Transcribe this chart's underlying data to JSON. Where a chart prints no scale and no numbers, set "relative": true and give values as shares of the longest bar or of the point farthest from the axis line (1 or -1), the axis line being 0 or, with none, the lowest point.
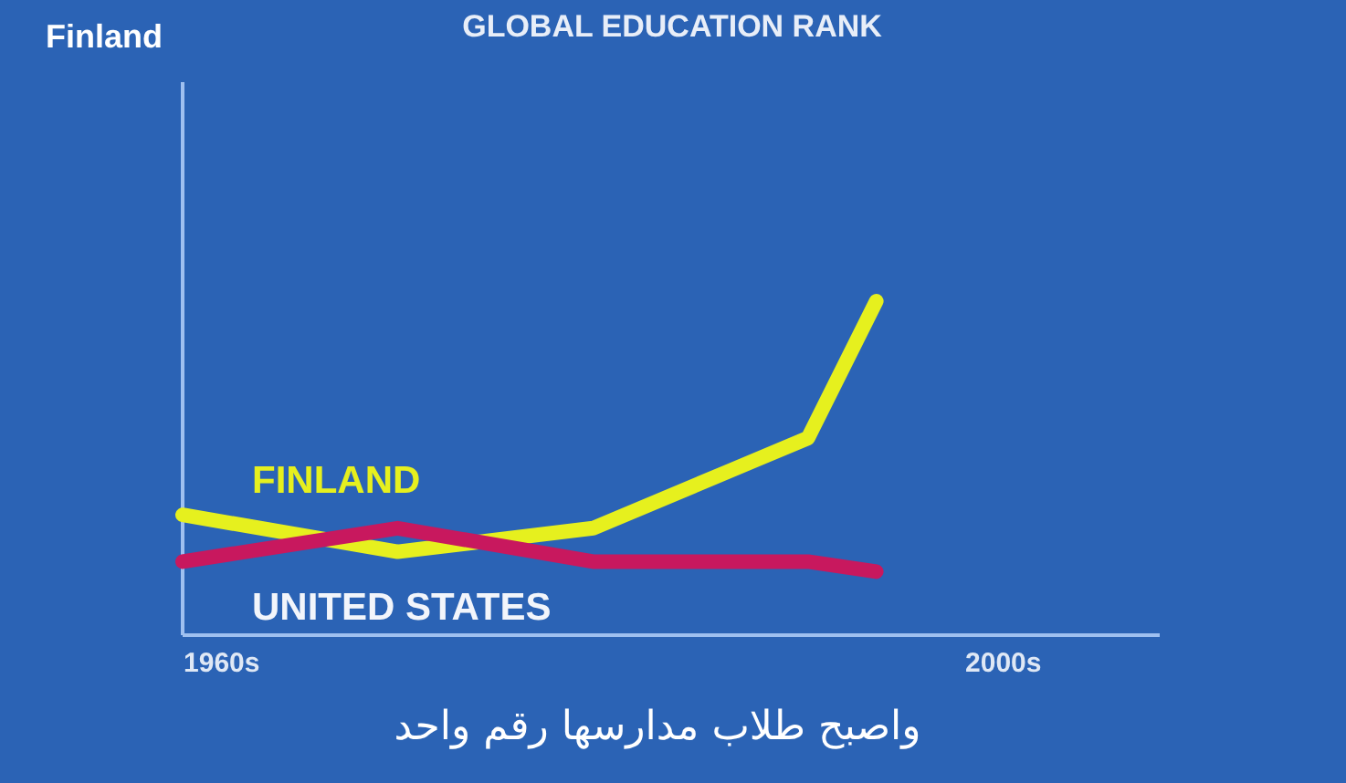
{
  "chart_data": {
    "type": "line",
    "title": "GLOBAL EDUCATION RANK",
    "relative": true,
    "x": [
      1958,
      1969,
      1979,
      1990,
      1993.5
    ],
    "xlim": [
      1958,
      2008
    ],
    "xticks": [
      {
        "value": 1960,
        "label": "1960s"
      },
      {
        "value": 2000,
        "label": "2000s"
      }
    ],
    "series": [
      {
        "name": "FINLAND",
        "color": "#e6f01e",
        "values": [
          0.36,
          0.25,
          0.32,
          0.59,
          1
        ]
      },
      {
        "name": "UNITED STATES",
        "color": "#c8185e",
        "values": [
          0.22,
          0.32,
          0.22,
          0.22,
          0.19
        ]
      }
    ],
    "annotations": [
      "Finland",
      "واصبح طلاب مدارسها رقم واحد"
    ]
  }
}
